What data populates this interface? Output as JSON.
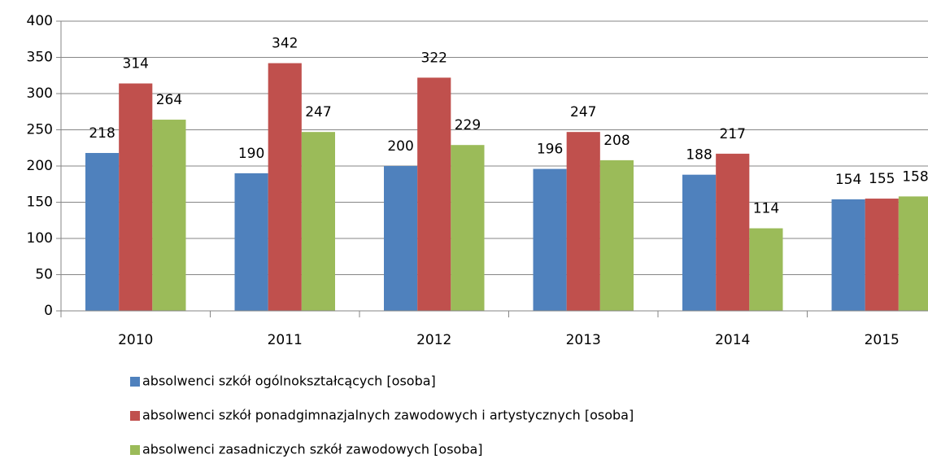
{
  "chart_data": {
    "type": "bar",
    "categories": [
      "2010",
      "2011",
      "2012",
      "2013",
      "2014",
      "2015"
    ],
    "series": [
      {
        "name": "absolwenci szkół ogólnokształcących [osoba]",
        "color": "#4f81bd",
        "values": [
          218,
          190,
          200,
          196,
          188,
          154
        ]
      },
      {
        "name": "absolwenci szkół ponadgimnazjalnych zawodowych i artystycznych [osoba]",
        "color": "#c0504d",
        "values": [
          314,
          342,
          322,
          247,
          217,
          155
        ]
      },
      {
        "name": "absolwenci zasadniczych szkół zawodowych [osoba]",
        "color": "#9bbb59",
        "values": [
          264,
          247,
          229,
          208,
          114,
          158
        ]
      }
    ],
    "ylim": [
      0,
      400
    ],
    "yticks": [
      0,
      50,
      100,
      150,
      200,
      250,
      300,
      350,
      400
    ],
    "grid": true,
    "legend": "bottom"
  }
}
